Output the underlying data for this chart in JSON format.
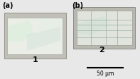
{
  "bg_color": "#e8e8e8",
  "fig_width": 1.97,
  "fig_height": 1.12,
  "dpi": 100,
  "panel_a_label": "(a)",
  "panel_b_label": "(b)",
  "label_1": "1",
  "label_2": "2",
  "scalebar_label": "50 μm",
  "crystal1_shadow": "#c0c0b8",
  "crystal1_bg": "#d4d8cc",
  "crystal1_inner": "#eaeee6",
  "crystal1_irid1": "#d8eedc",
  "crystal1_irid2": "#cce0d8",
  "crystal1_irid3": "#e0eee4",
  "crystal2_shadow": "#b8b8b0",
  "crystal2_bg": "#c8ccc4",
  "crystal2_inner": "#e0e4dc",
  "crystal2_crack": "#9aada0",
  "crystal2_irid": "#cce0d4",
  "label_fontsize": 7,
  "number_fontsize": 8,
  "scalebar_fontsize": 5.5
}
